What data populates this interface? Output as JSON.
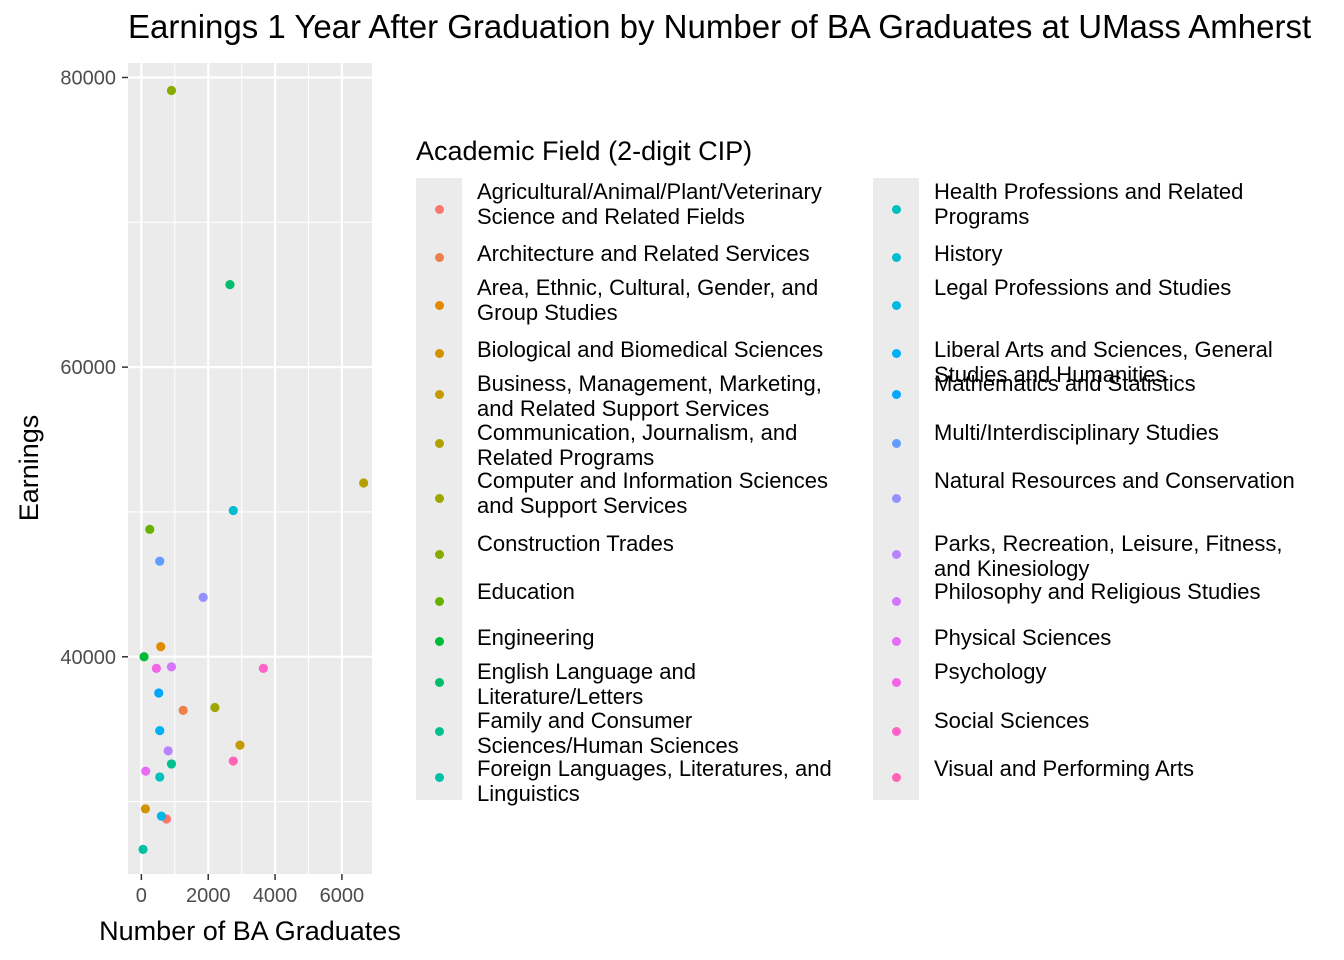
{
  "chart_data": {
    "type": "scatter",
    "title": "Earnings 1 Year After Graduation by Number of BA Graduates at UMass Amherst",
    "xlabel": "Number of BA Graduates",
    "ylabel": "Earnings",
    "xlim": [
      -400,
      6900
    ],
    "ylim": [
      25000,
      81000
    ],
    "x_ticks": [
      0,
      2000,
      4000,
      6000
    ],
    "y_ticks": [
      40000,
      60000,
      80000
    ],
    "grid": true,
    "legend_title": "Academic Field (2-digit CIP)",
    "legend_position": "right",
    "series": [
      {
        "name": "Agricultural/Animal/Plant/Veterinary Science and Related Fields",
        "color": "#F8766D",
        "points": [
          [
            750,
            28800
          ]
        ]
      },
      {
        "name": "Architecture and Related Services",
        "color": "#EF7F49",
        "points": [
          [
            1250,
            36300
          ]
        ]
      },
      {
        "name": "Area, Ethnic, Cultural, Gender, and Group Studies",
        "color": "#E28A00",
        "points": [
          [
            580,
            40700
          ]
        ]
      },
      {
        "name": "Biological and Biomedical Sciences",
        "color": "#D39200",
        "points": [
          [
            120,
            29500
          ]
        ]
      },
      {
        "name": "Business, Management, Marketing, and Related Support Services",
        "color": "#C49A00",
        "points": [
          [
            2950,
            33900
          ]
        ]
      },
      {
        "name": "Communication, Journalism, and Related Programs",
        "color": "#B3A000",
        "points": [
          [
            6650,
            52000
          ]
        ]
      },
      {
        "name": "Computer and Information Sciences and Support Services",
        "color": "#9FA600",
        "points": [
          [
            2200,
            36500
          ]
        ]
      },
      {
        "name": "Construction Trades",
        "color": "#86AC00",
        "points": [
          [
            900,
            79100
          ]
        ]
      },
      {
        "name": "Education",
        "color": "#66B200",
        "points": [
          [
            250,
            48800
          ]
        ]
      },
      {
        "name": "Engineering",
        "color": "#00BA38",
        "points": [
          [
            80,
            40000
          ]
        ]
      },
      {
        "name": "English Language and Literature/Letters",
        "color": "#00BE6C",
        "points": [
          [
            2650,
            65700
          ]
        ]
      },
      {
        "name": "Family and Consumer Sciences/Human Sciences",
        "color": "#00C08B",
        "points": [
          [
            900,
            32600
          ]
        ]
      },
      {
        "name": "Foreign Languages, Literatures, and Linguistics",
        "color": "#00C1A7",
        "points": [
          [
            50,
            26700
          ]
        ]
      },
      {
        "name": "Health Professions and Related Programs",
        "color": "#00C0BE",
        "points": [
          [
            550,
            31700
          ]
        ]
      },
      {
        "name": "History",
        "color": "#00BDD0",
        "points": [
          [
            2750,
            50100
          ]
        ]
      },
      {
        "name": "Legal Professions and Studies",
        "color": "#00B8E5",
        "points": [
          [
            600,
            29000
          ]
        ]
      },
      {
        "name": "Liberal Arts and Sciences, General Studies and Humanities",
        "color": "#00B0F6",
        "points": [
          [
            550,
            34900
          ]
        ]
      },
      {
        "name": "Mathematics and Statistics",
        "color": "#00A6FF",
        "points": [
          [
            520,
            37500
          ]
        ]
      },
      {
        "name": "Multi/Interdisciplinary Studies",
        "color": "#619CFF",
        "points": [
          [
            550,
            46600
          ]
        ]
      },
      {
        "name": "Natural Resources and Conservation",
        "color": "#9590FF",
        "points": [
          [
            1850,
            44100
          ]
        ]
      },
      {
        "name": "Parks, Recreation, Leisure, Fitness, and Kinesiology",
        "color": "#B983FF",
        "points": [
          [
            800,
            33500
          ]
        ]
      },
      {
        "name": "Philosophy and Religious Studies",
        "color": "#D575FE",
        "points": [
          [
            900,
            39300
          ]
        ]
      },
      {
        "name": "Physical Sciences",
        "color": "#E76BF3",
        "points": [
          [
            130,
            32100
          ]
        ]
      },
      {
        "name": "Psychology",
        "color": "#F365E6",
        "points": [
          [
            450,
            39200
          ]
        ]
      },
      {
        "name": "Social Sciences",
        "color": "#FF61C9",
        "points": [
          [
            3650,
            39200
          ]
        ]
      },
      {
        "name": "Visual and Performing Arts",
        "color": "#FF63B6",
        "points": [
          [
            2750,
            32800
          ]
        ]
      }
    ]
  }
}
